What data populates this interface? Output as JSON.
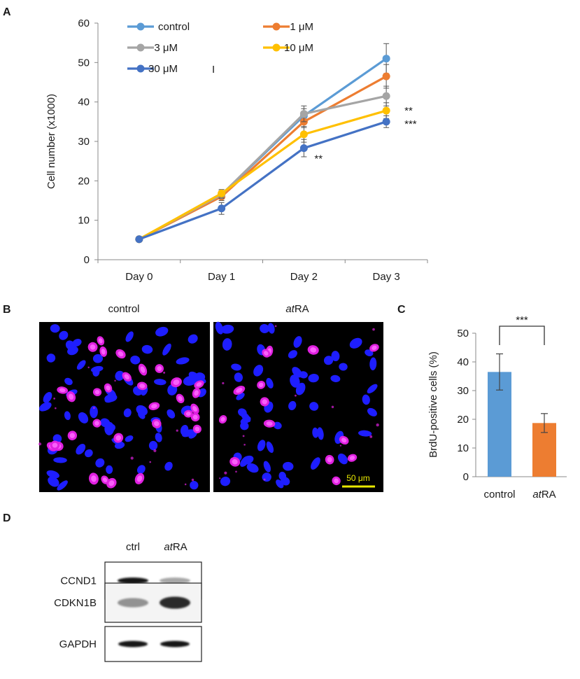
{
  "panels": {
    "a": "A",
    "b": "B",
    "c": "C",
    "d": "D"
  },
  "chart_data": [
    {
      "type": "line",
      "panel": "A",
      "xlabel": "",
      "ylabel": "Cell number (x1000)",
      "categories": [
        "Day 0",
        "Day 1",
        "Day 2",
        "Day 3"
      ],
      "ylim": [
        0,
        60
      ],
      "yticks": [
        "0",
        "10",
        "20",
        "30",
        "40",
        "50",
        "60"
      ],
      "grid": false,
      "legend_position": "top-left",
      "series": [
        {
          "name": "control",
          "color": "#5b9bd5",
          "values": [
            5.2,
            16.5,
            36.5,
            51.0
          ],
          "errors": [
            0.3,
            1.0,
            1.8,
            3.8
          ]
        },
        {
          "name": "1 μM",
          "color": "#ed7d31",
          "values": [
            5.2,
            16.0,
            35.0,
            46.5
          ],
          "errors": [
            0.3,
            1.0,
            1.5,
            3.0
          ]
        },
        {
          "name": "3 μM",
          "color": "#a5a5a5",
          "values": [
            5.2,
            16.5,
            37.0,
            41.5
          ],
          "errors": [
            0.3,
            1.0,
            2.0,
            2.5
          ]
        },
        {
          "name": "10 μM",
          "color": "#ffc000",
          "values": [
            5.2,
            16.8,
            31.8,
            37.8
          ],
          "errors": [
            0.3,
            1.0,
            2.0,
            2.0
          ]
        },
        {
          "name": "30 μM",
          "color": "#4472c4",
          "values": [
            5.2,
            13.0,
            28.3,
            35.0
          ],
          "errors": [
            0.3,
            1.5,
            2.2,
            1.5
          ]
        }
      ],
      "annotations": [
        {
          "text": "**",
          "category": "Day 2",
          "y": 28.3
        },
        {
          "text": "**",
          "category": "Day 3",
          "y": 37.8
        },
        {
          "text": "***",
          "category": "Day 3",
          "y": 35.0
        },
        {
          "text": "I",
          "note": "stray mark next to legend"
        }
      ]
    },
    {
      "type": "bar",
      "panel": "C",
      "categories": [
        "control",
        "atRA"
      ],
      "values": [
        36.5,
        18.7
      ],
      "errors": [
        6.3,
        3.3
      ],
      "colors": [
        "#5b9bd5",
        "#ed7d31"
      ],
      "xlabel": "",
      "ylabel": "BrdU-positive cells (%)",
      "ylim": [
        0,
        50
      ],
      "yticks": [
        "0",
        "10",
        "20",
        "30",
        "40",
        "50"
      ],
      "significance": "***"
    }
  ],
  "micrographs": {
    "left_label": "control",
    "right_label_italic": "at",
    "right_label_rest": "RA",
    "scale_bar": "50 μm",
    "nucleus_color": "#1e1eff",
    "brdu_color": "#e020e0"
  },
  "western_blot": {
    "lanes": [
      "ctrl",
      "atRA"
    ],
    "lane2_italic": "at",
    "lane2_rest": "RA",
    "proteins": [
      "CCND1",
      "CDKN1B",
      "GAPDH"
    ],
    "intensity": [
      [
        1.0,
        0.3
      ],
      [
        0.4,
        0.9
      ],
      [
        1.0,
        1.0
      ]
    ]
  }
}
